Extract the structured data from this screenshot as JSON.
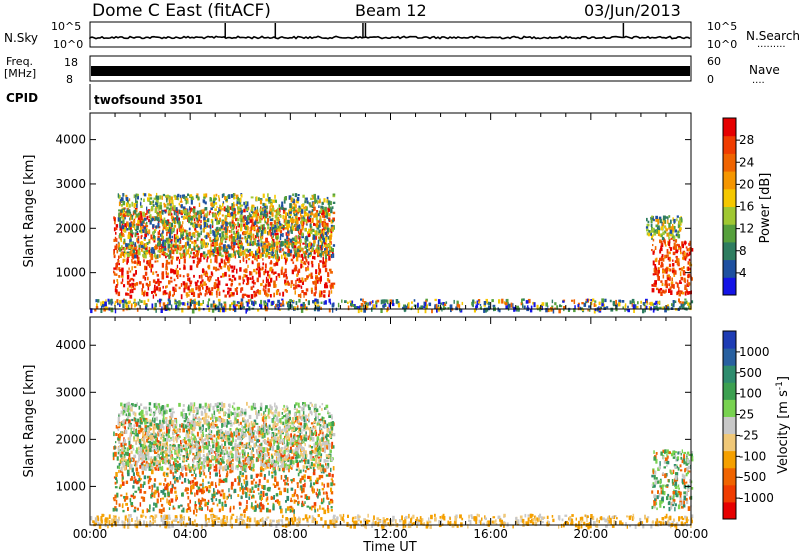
{
  "header": {
    "station": "Dome C East (fitACF)",
    "beam": "Beam 12",
    "date": "03/Jun/2013",
    "cpid_label": "CPID",
    "cpid_value": "twofsound 3501"
  },
  "chart_data": [
    {
      "type": "line",
      "name": "noise",
      "left_label": "N.Sky",
      "right_label": "N.Search",
      "left_ticks": [
        "10^5",
        "10^0"
      ],
      "right_ticks": [
        "10^5",
        "10^0"
      ],
      "right_marker": "·········",
      "level_fraction": 0.38,
      "spikes_hours": [
        5.4,
        7.4,
        10.9,
        11.0,
        21.3
      ]
    },
    {
      "type": "line",
      "name": "frequency",
      "left_label": "Freq.",
      "left_unit": "[MHz]",
      "right_label": "Nave",
      "right_marker": "····",
      "left_ticks": [
        "18",
        "8"
      ],
      "right_ticks": [
        "60",
        "0"
      ]
    },
    {
      "type": "heatmap",
      "name": "power",
      "ylabel": "Slant Range [km]",
      "xlabel": "",
      "yticks": [
        1000,
        2000,
        3000,
        4000
      ],
      "ylim": [
        180,
        4600
      ],
      "xlim_hours": [
        0,
        24
      ],
      "colorbar": {
        "label": "Power [dB]",
        "ticks": [
          "4",
          "8",
          "12",
          "16",
          "20",
          "24",
          "28"
        ],
        "colors": [
          "#1414e6",
          "#1e50a0",
          "#2e7d60",
          "#56a03c",
          "#a0c832",
          "#f5c800",
          "#f59600",
          "#f06400",
          "#f03c00",
          "#e60000"
        ]
      },
      "echo_regions": [
        {
          "t0": 0.9,
          "t1": 9.7,
          "r0": 500,
          "r1": 2500,
          "strength": "strong"
        },
        {
          "t0": 1.1,
          "t1": 9.7,
          "r0": 1400,
          "r1": 2800,
          "strength": "medium"
        },
        {
          "t0": 22.4,
          "t1": 24.0,
          "r0": 550,
          "r1": 1800,
          "strength": "strong"
        },
        {
          "t0": 22.2,
          "t1": 23.6,
          "r0": 1800,
          "r1": 2300,
          "strength": "medium"
        },
        {
          "t0": 0.0,
          "t1": 24.0,
          "r0": 180,
          "r1": 420,
          "strength": "weak"
        }
      ]
    },
    {
      "type": "heatmap",
      "name": "velocity",
      "ylabel": "Slant Range [km]",
      "xlabel": "Time UT",
      "yticks": [
        1000,
        2000,
        3000,
        4000
      ],
      "ylim": [
        180,
        4600
      ],
      "xticks": [
        "00:00",
        "04:00",
        "08:00",
        "12:00",
        "16:00",
        "20:00",
        "00:00"
      ],
      "xlim_hours": [
        0,
        24
      ],
      "colorbar": {
        "label": "Velocity [m s",
        "label_sup": "-1",
        "label_end": "]",
        "ticks": [
          "-1000",
          "-500",
          "-100",
          "-25",
          "25",
          "100",
          "500",
          "1000"
        ],
        "colors": [
          "#e60000",
          "#f03c00",
          "#f06400",
          "#f5a000",
          "#f0c878",
          "#c8c8c8",
          "#78d250",
          "#3ca050",
          "#2e8c6e",
          "#2860a0",
          "#1e3cb4"
        ]
      },
      "echo_regions": [
        {
          "t0": 0.9,
          "t1": 9.7,
          "r0": 500,
          "r1": 2500,
          "velocity": "-500"
        },
        {
          "t0": 1.1,
          "t1": 9.7,
          "r0": 1400,
          "r1": 2800,
          "velocity": "25"
        },
        {
          "t0": 22.4,
          "t1": 24.0,
          "r0": 550,
          "r1": 1800,
          "velocity": "100"
        },
        {
          "t0": 0.0,
          "t1": 24.0,
          "r0": 180,
          "r1": 420,
          "velocity": "-25"
        }
      ]
    }
  ]
}
